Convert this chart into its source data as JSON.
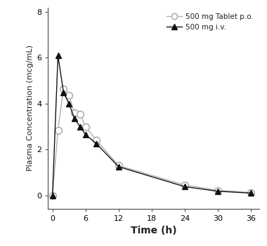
{
  "po_time": [
    0,
    1,
    2,
    3,
    4,
    5,
    6,
    8,
    12,
    24,
    30,
    36
  ],
  "po_conc": [
    0.0,
    2.85,
    4.65,
    4.35,
    3.6,
    3.55,
    3.0,
    2.4,
    1.3,
    0.45,
    0.22,
    0.12
  ],
  "iv_time": [
    0,
    1,
    2,
    3,
    4,
    5,
    6,
    8,
    12,
    24,
    30,
    36
  ],
  "iv_conc": [
    0.0,
    6.1,
    4.5,
    4.0,
    3.35,
    3.0,
    2.65,
    2.25,
    1.25,
    0.38,
    0.18,
    0.1
  ],
  "po_color": "#b0b0b0",
  "iv_color": "#111111",
  "bg_color": "#ffffff",
  "xlabel": "Time (h)",
  "ylabel": "Plasma Concentration (mcg/mL)",
  "xlim": [
    -0.8,
    37.5
  ],
  "ylim": [
    -0.6,
    8.2
  ],
  "xticks": [
    0,
    6,
    12,
    18,
    24,
    30,
    36
  ],
  "yticks": [
    0,
    2,
    4,
    6,
    8
  ],
  "legend_po": "500 mg Tablet p.o.",
  "legend_iv": "500 mg i.v.",
  "figsize": [
    3.8,
    3.51
  ],
  "dpi": 100
}
